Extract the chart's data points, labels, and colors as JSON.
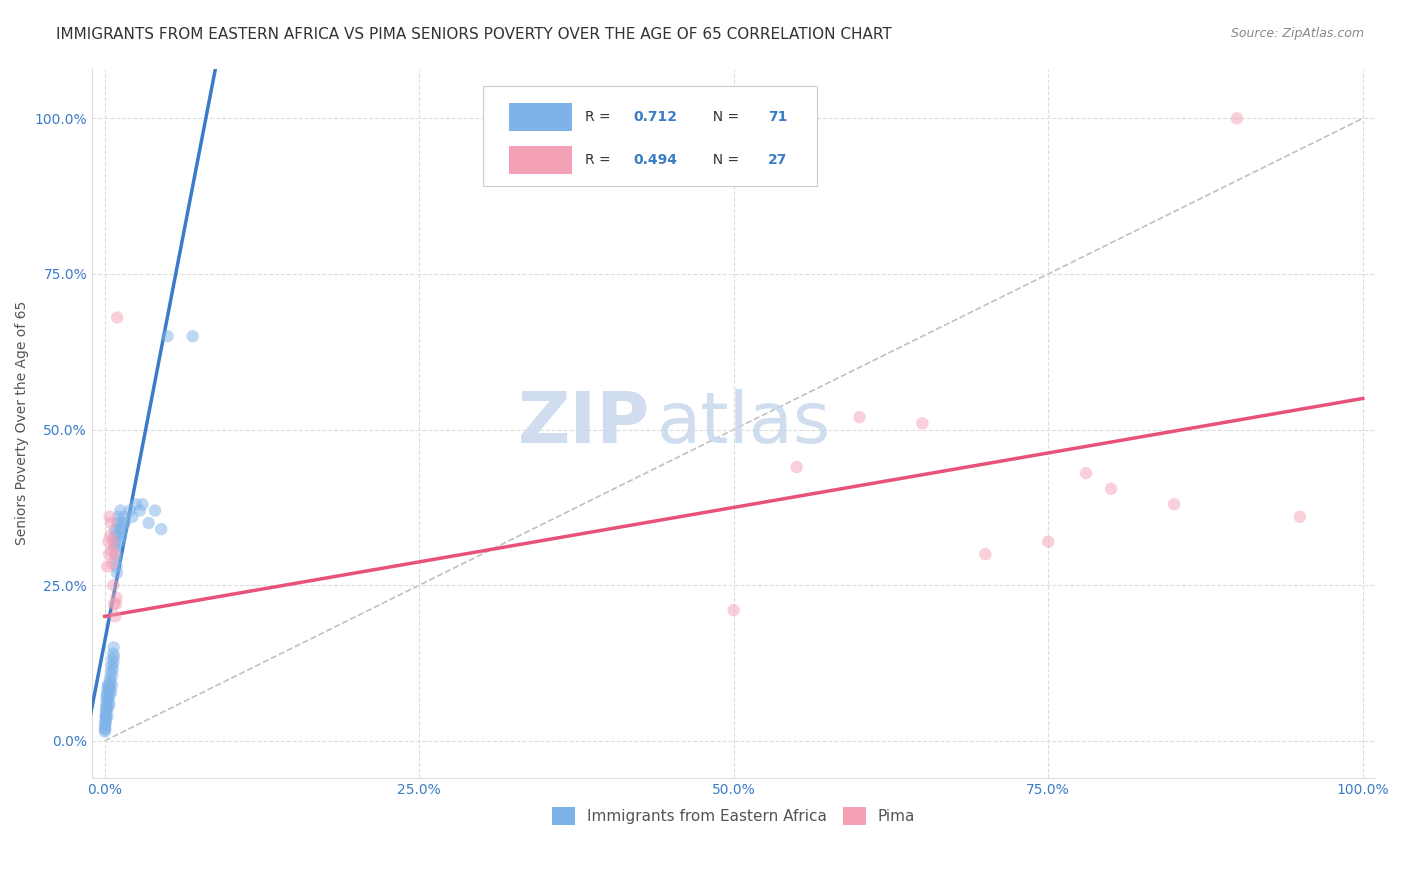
{
  "title": "IMMIGRANTS FROM EASTERN AFRICA VS PIMA SENIORS POVERTY OVER THE AGE OF 65 CORRELATION CHART",
  "source": "Source: ZipAtlas.com",
  "xlabel_ticks": [
    "0.0%",
    "25.0%",
    "50.0%",
    "75.0%",
    "100.0%"
  ],
  "ylabel_ticks": [
    "0.0%",
    "25.0%",
    "50.0%",
    "75.0%",
    "100.0%"
  ],
  "xlabel_tick_vals": [
    0,
    25,
    50,
    75,
    100
  ],
  "ylabel_tick_vals": [
    0,
    25,
    50,
    75,
    100
  ],
  "ylabel": "Seniors Poverty Over the Age of 65",
  "watermark_zip": "ZIP",
  "watermark_atlas": "atlas",
  "blue_scatter": [
    [
      0.05,
      2.5
    ],
    [
      0.07,
      3.0
    ],
    [
      0.08,
      4.0
    ],
    [
      0.1,
      5.0
    ],
    [
      0.12,
      3.5
    ],
    [
      0.15,
      6.0
    ],
    [
      0.18,
      7.5
    ],
    [
      0.2,
      5.0
    ],
    [
      0.22,
      4.0
    ],
    [
      0.25,
      8.0
    ],
    [
      0.28,
      6.5
    ],
    [
      0.3,
      5.5
    ],
    [
      0.32,
      7.0
    ],
    [
      0.35,
      9.0
    ],
    [
      0.38,
      6.0
    ],
    [
      0.4,
      8.5
    ],
    [
      0.42,
      10.0
    ],
    [
      0.45,
      7.5
    ],
    [
      0.48,
      9.5
    ],
    [
      0.5,
      11.0
    ],
    [
      0.52,
      8.0
    ],
    [
      0.55,
      12.0
    ],
    [
      0.58,
      9.0
    ],
    [
      0.6,
      10.5
    ],
    [
      0.62,
      13.0
    ],
    [
      0.65,
      11.5
    ],
    [
      0.68,
      14.0
    ],
    [
      0.7,
      12.5
    ],
    [
      0.72,
      15.0
    ],
    [
      0.75,
      13.5
    ],
    [
      0.78,
      31.0
    ],
    [
      0.8,
      32.0
    ],
    [
      0.82,
      33.0
    ],
    [
      0.85,
      34.0
    ],
    [
      0.88,
      31.5
    ],
    [
      0.9,
      29.0
    ],
    [
      0.92,
      30.0
    ],
    [
      0.95,
      28.0
    ],
    [
      0.98,
      27.0
    ],
    [
      1.0,
      33.0
    ],
    [
      1.05,
      35.0
    ],
    [
      1.1,
      36.0
    ],
    [
      1.15,
      34.0
    ],
    [
      1.2,
      32.0
    ],
    [
      1.25,
      37.0
    ],
    [
      1.3,
      33.0
    ],
    [
      1.35,
      35.0
    ],
    [
      1.4,
      34.0
    ],
    [
      1.5,
      36.0
    ],
    [
      1.6,
      35.0
    ],
    [
      2.0,
      37.0
    ],
    [
      2.2,
      36.0
    ],
    [
      2.5,
      38.0
    ],
    [
      2.8,
      37.0
    ],
    [
      3.0,
      38.0
    ],
    [
      3.5,
      35.0
    ],
    [
      4.0,
      37.0
    ],
    [
      4.5,
      34.0
    ],
    [
      5.0,
      65.0
    ],
    [
      0.02,
      1.5
    ],
    [
      0.03,
      2.0
    ],
    [
      0.04,
      1.8
    ],
    [
      0.06,
      2.8
    ],
    [
      0.09,
      3.8
    ],
    [
      0.11,
      4.5
    ],
    [
      0.13,
      5.5
    ],
    [
      0.16,
      6.8
    ],
    [
      0.19,
      7.2
    ],
    [
      0.23,
      8.5
    ],
    [
      0.26,
      9.0
    ],
    [
      7.0,
      65.0
    ]
  ],
  "pink_scatter": [
    [
      0.2,
      28.0
    ],
    [
      0.3,
      32.0
    ],
    [
      0.35,
      30.0
    ],
    [
      0.4,
      36.0
    ],
    [
      0.45,
      33.0
    ],
    [
      0.5,
      35.0
    ],
    [
      0.55,
      30.5
    ],
    [
      0.6,
      28.5
    ],
    [
      0.65,
      32.0
    ],
    [
      0.7,
      25.0
    ],
    [
      0.75,
      22.0
    ],
    [
      0.8,
      30.0
    ],
    [
      0.85,
      20.0
    ],
    [
      0.9,
      22.0
    ],
    [
      0.95,
      23.0
    ],
    [
      1.0,
      68.0
    ],
    [
      50.0,
      21.0
    ],
    [
      60.0,
      52.0
    ],
    [
      65.0,
      51.0
    ],
    [
      70.0,
      30.0
    ],
    [
      75.0,
      32.0
    ],
    [
      80.0,
      40.5
    ],
    [
      85.0,
      38.0
    ],
    [
      90.0,
      100.0
    ],
    [
      55.0,
      44.0
    ],
    [
      78.0,
      43.0
    ],
    [
      95.0,
      36.0
    ]
  ],
  "blue_line_x": [
    -2,
    9
  ],
  "blue_line_y": [
    -5,
    110
  ],
  "pink_line_x": [
    0,
    100
  ],
  "pink_line_y": [
    20,
    55
  ],
  "ref_line_x": [
    0,
    100
  ],
  "ref_line_y": [
    0,
    100
  ],
  "bg_color": "#ffffff",
  "grid_color": "#dddddd",
  "blue_dot_color": "#7eb3e8",
  "pink_dot_color": "#f4a0b5",
  "blue_line_color": "#3a7cc7",
  "pink_line_color": "#e8527a",
  "ref_line_color": "#c0c0c0",
  "title_fontsize": 11,
  "source_fontsize": 9,
  "axis_label_fontsize": 10,
  "tick_fontsize": 10,
  "legend_fontsize": 11,
  "watermark_fontsize_zip": 52,
  "watermark_fontsize_atlas": 52,
  "watermark_color": "#c8d8ec",
  "dot_size": 80,
  "dot_alpha": 0.5
}
